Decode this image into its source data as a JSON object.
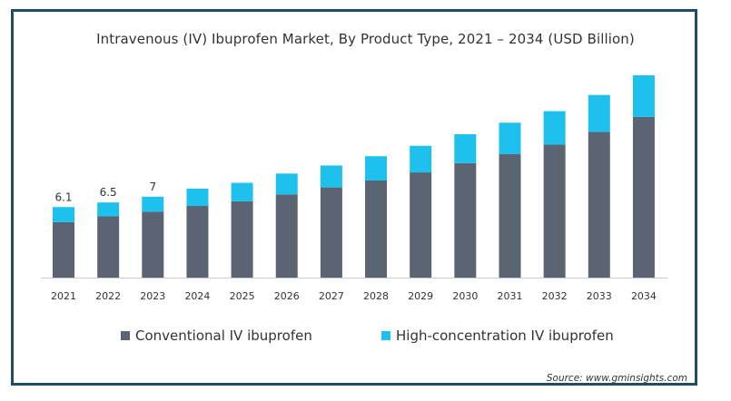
{
  "chart_data": {
    "type": "bar",
    "stacked": true,
    "title": "Intravenous (IV) Ibuprofen Market, By Product Type, 2021 – 2034 (USD Billion)",
    "xlabel": "",
    "ylabel": "",
    "categories": [
      "2021",
      "2022",
      "2023",
      "2024",
      "2025",
      "2026",
      "2027",
      "2028",
      "2029",
      "2030",
      "2031",
      "2032",
      "2033",
      "2034"
    ],
    "series": [
      {
        "name": "Conventional IV ibuprofen",
        "color": "#5a6472",
        "values": [
          4.8,
          5.3,
          5.7,
          6.2,
          6.6,
          7.2,
          7.8,
          8.4,
          9.1,
          9.9,
          10.7,
          11.5,
          12.6,
          13.9
        ]
      },
      {
        "name": "High-concentration IV ibuprofen",
        "color": "#1ec0ee",
        "values": [
          1.3,
          1.2,
          1.3,
          1.5,
          1.6,
          1.8,
          1.9,
          2.1,
          2.3,
          2.5,
          2.7,
          2.9,
          3.2,
          3.6
        ]
      }
    ],
    "data_labels": {
      "2021": "6.1",
      "2022": "6.5",
      "2023": "7"
    },
    "ylim": [
      0,
      17.5
    ],
    "grid": false,
    "legend": "bottom"
  },
  "source": "Source: www.gminsights.com"
}
